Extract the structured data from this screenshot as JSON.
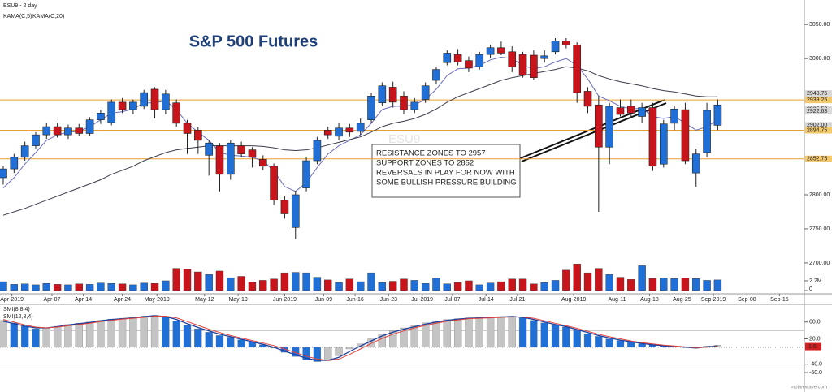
{
  "header": {
    "symbol": "ESU9 - 2 day",
    "watermark": "ESU9",
    "footer": "motivewave.com"
  },
  "chart_data": [
    {
      "type": "candlestick",
      "title": "S&P 500 Futures",
      "up_color": "#1f6fd6",
      "down_color": "#c8141a",
      "open": [
        2825,
        2838,
        2855,
        2872,
        2888,
        2900,
        2888,
        2898,
        2890,
        2910,
        2906,
        2936,
        2925,
        2930,
        2955,
        2925,
        2935,
        2905,
        2895,
        2858,
        2872,
        2830,
        2872,
        2866,
        2852,
        2842,
        2792,
        2752,
        2810,
        2850,
        2895,
        2886,
        2898,
        2893,
        2910,
        2935,
        2958,
        2945,
        2925,
        2940,
        2968,
        2994,
        3006,
        2997,
        2988,
        3006,
        3016,
        3010,
        3006,
        3005,
        3000,
        3010,
        3026,
        3020,
        2952,
        2932,
        2870,
        2928,
        2930,
        2915,
        2928,
        2845,
        2905,
        2925,
        2832,
        2862,
        2902
      ],
      "high": [
        2842,
        2860,
        2878,
        2892,
        2905,
        2906,
        2903,
        2904,
        2914,
        2925,
        2940,
        2942,
        2940,
        2954,
        2958,
        2954,
        2940,
        2910,
        2900,
        2880,
        2876,
        2880,
        2878,
        2870,
        2858,
        2846,
        2798,
        2806,
        2856,
        2885,
        2900,
        2905,
        2904,
        2912,
        2950,
        2965,
        2966,
        2952,
        2942,
        2965,
        2988,
        3012,
        3014,
        3003,
        3010,
        3020,
        3025,
        3018,
        3010,
        3012,
        3012,
        3030,
        3030,
        3024,
        2958,
        2945,
        2935,
        2940,
        2940,
        2935,
        2935,
        2910,
        2930,
        2935,
        2868,
        2935,
        2940
      ],
      "low": [
        2815,
        2832,
        2850,
        2868,
        2882,
        2884,
        2882,
        2886,
        2887,
        2904,
        2902,
        2920,
        2918,
        2926,
        2912,
        2918,
        2900,
        2860,
        2860,
        2828,
        2805,
        2822,
        2855,
        2840,
        2836,
        2785,
        2765,
        2735,
        2805,
        2845,
        2882,
        2880,
        2885,
        2888,
        2905,
        2930,
        2928,
        2918,
        2920,
        2935,
        2962,
        2990,
        2990,
        2980,
        2984,
        3000,
        3005,
        2980,
        2972,
        2968,
        2994,
        3006,
        3015,
        2935,
        2920,
        2775,
        2845,
        2915,
        2912,
        2905,
        2835,
        2840,
        2895,
        2845,
        2812,
        2855,
        2895
      ],
      "close": [
        2838,
        2855,
        2872,
        2888,
        2900,
        2888,
        2898,
        2890,
        2910,
        2920,
        2936,
        2925,
        2936,
        2950,
        2925,
        2948,
        2905,
        2890,
        2880,
        2876,
        2830,
        2876,
        2860,
        2855,
        2842,
        2792,
        2772,
        2800,
        2850,
        2880,
        2888,
        2898,
        2892,
        2905,
        2945,
        2960,
        2936,
        2925,
        2936,
        2960,
        2984,
        3008,
        2995,
        2986,
        3006,
        3016,
        3008,
        2988,
        2976,
        2972,
        3004,
        3026,
        3020,
        2950,
        2930,
        2870,
        2930,
        2918,
        2920,
        2928,
        2842,
        2904,
        2926,
        2850,
        2860,
        2924,
        2932
      ],
      "series": [
        {
          "name": "KAMA(C,5)",
          "color": "#6a6db8",
          "values": [
            2810,
            2825,
            2845,
            2862,
            2880,
            2888,
            2892,
            2893,
            2900,
            2910,
            2920,
            2922,
            2926,
            2935,
            2935,
            2938,
            2925,
            2905,
            2892,
            2880,
            2862,
            2858,
            2857,
            2855,
            2850,
            2835,
            2812,
            2805,
            2818,
            2840,
            2860,
            2872,
            2880,
            2888,
            2905,
            2925,
            2930,
            2930,
            2932,
            2940,
            2955,
            2975,
            2985,
            2986,
            2990,
            2998,
            3002,
            3000,
            2990,
            2985,
            2988,
            2995,
            3000,
            2990,
            2970,
            2945,
            2938,
            2930,
            2926,
            2927,
            2915,
            2912,
            2915,
            2905,
            2895,
            2900,
            2910
          ]
        },
        {
          "name": "KAMA(C,20)",
          "color": "#3c3c4c",
          "values": [
            2770,
            2775,
            2780,
            2786,
            2792,
            2798,
            2804,
            2810,
            2816,
            2822,
            2830,
            2836,
            2842,
            2850,
            2856,
            2862,
            2866,
            2868,
            2870,
            2872,
            2872,
            2872,
            2872,
            2872,
            2871,
            2869,
            2866,
            2865,
            2866,
            2869,
            2873,
            2877,
            2881,
            2885,
            2892,
            2900,
            2905,
            2908,
            2912,
            2918,
            2926,
            2936,
            2944,
            2950,
            2956,
            2962,
            2968,
            2972,
            2975,
            2978,
            2981,
            2984,
            2988,
            2986,
            2982,
            2975,
            2970,
            2966,
            2963,
            2960,
            2956,
            2953,
            2951,
            2948,
            2945,
            2944,
            2944
          ]
        }
      ],
      "ylim": [
        2657,
        3086
      ],
      "yticks": [
        {
          "value": 3050,
          "label": "3050.00"
        },
        {
          "value": 3000,
          "label": "3000.00"
        },
        {
          "value": 2800,
          "label": "2800.00"
        },
        {
          "value": 2750,
          "label": "2750.00"
        },
        {
          "value": 2700,
          "label": "2700.00"
        }
      ],
      "levels": [
        {
          "value": 2948.75,
          "color": "#d8d8d8",
          "line": false
        },
        {
          "value": 2939.25,
          "color": "#f3c96b",
          "line": true
        },
        {
          "value": 2925.5,
          "label": "2925.50",
          "color": "#d8d8d8",
          "line": false
        },
        {
          "value": 2922.63,
          "color": "#d8d8d8",
          "line": false
        },
        {
          "value": 2902,
          "label": "2902.00",
          "color": "#d8d8d8",
          "line": false
        },
        {
          "value": 2894.75,
          "color": "#f3c96b",
          "line": true
        },
        {
          "value": 2852.75,
          "color": "#f3c96b",
          "line": true
        }
      ],
      "xlim": [
        -0.3,
        74
      ],
      "xticks": [
        {
          "value": 0.8,
          "label": "Apr-2019"
        },
        {
          "value": 4.5,
          "label": "Apr-07"
        },
        {
          "value": 7.4,
          "label": "Apr-14"
        },
        {
          "value": 11,
          "label": "Apr-24"
        },
        {
          "value": 14.2,
          "label": "May-2019"
        },
        {
          "value": 18.6,
          "label": "May-12"
        },
        {
          "value": 21.7,
          "label": "May-19"
        },
        {
          "value": 26,
          "label": "Jun-2019"
        },
        {
          "value": 29.6,
          "label": "Jun-09"
        },
        {
          "value": 32.5,
          "label": "Jun-16"
        },
        {
          "value": 35.6,
          "label": "Jun-23"
        },
        {
          "value": 38.7,
          "label": "Jul-2019"
        },
        {
          "value": 41.5,
          "label": "Jul-07"
        },
        {
          "value": 44.6,
          "label": "Jul-14"
        },
        {
          "value": 47.5,
          "label": "Jul-21"
        },
        {
          "value": 52.7,
          "label": "Aug-2019"
        },
        {
          "value": 56.7,
          "label": "Aug-11"
        },
        {
          "value": 59.7,
          "label": "Aug-18"
        },
        {
          "value": 62.7,
          "label": "Aug-25"
        },
        {
          "value": 65.6,
          "label": "Sep-2019"
        },
        {
          "value": 68.7,
          "label": "Sep-08"
        },
        {
          "value": 71.7,
          "label": "Sep-15"
        }
      ],
      "grid": false,
      "annotation": [
        "RESISTANCE ZONES TO 2957",
        "SUPPORT ZONES TO 2852",
        "REVERSALS IN PLAY FOR NOW WITH",
        "SOME BULLISH PRESSURE BUILDING"
      ]
    },
    {
      "type": "volume",
      "values": [
        2.0,
        1.4,
        1.5,
        1.3,
        1.6,
        1.4,
        1.3,
        1.5,
        1.4,
        1.7,
        1.6,
        1.5,
        1.3,
        1.7,
        1.6,
        2.2,
        5.0,
        4.8,
        4.2,
        3.6,
        4.4,
        2.9,
        3.2,
        1.9,
        2.3,
        2.6,
        4.0,
        4.1,
        4.0,
        3.0,
        2.4,
        1.8,
        2.6,
        2.0,
        4.0,
        1.8,
        2.1,
        2.6,
        2.3,
        1.6,
        2.8,
        1.5,
        1.8,
        2.2,
        1.3,
        1.7,
        2.0,
        2.6,
        2.6,
        1.5,
        1.8,
        2.3,
        4.6,
        6.0,
        4.0,
        5.0,
        3.6,
        3.0,
        2.5,
        5.6,
        2.7,
        2.8,
        2.7,
        2.8,
        2.7,
        2.3,
        2.4
      ],
      "ylim": [
        0,
        6.4
      ],
      "yticks": [
        {
          "value": 2.2,
          "label": "2.2M"
        },
        0
      ]
    },
    {
      "type": "smi",
      "series": [
        {
          "name": "SMI(8,8,4)",
          "kind": "histogram",
          "rise_color": "#c4c4c4",
          "fall_color": "#1f6fd6",
          "values": [
            64,
            58,
            50,
            44,
            46,
            50,
            54,
            57,
            60,
            64,
            67,
            69,
            71,
            74,
            76,
            72,
            62,
            52,
            44,
            36,
            28,
            24,
            18,
            12,
            6,
            -2,
            -12,
            -22,
            -30,
            -34,
            -32,
            -20,
            -4,
            8,
            20,
            32,
            40,
            46,
            52,
            58,
            62,
            66,
            68,
            70,
            71,
            72,
            73,
            74,
            70,
            64,
            58,
            52,
            48,
            40,
            32,
            26,
            20,
            16,
            12,
            8,
            6,
            4,
            2,
            0,
            -2,
            3,
            5
          ]
        },
        {
          "name": "SMI(12,8,4)",
          "kind": "line",
          "color": "#1b3f9a",
          "values": [
            62,
            56,
            50,
            46,
            46,
            49,
            53,
            56,
            59,
            63,
            66,
            68,
            70,
            73,
            75,
            73,
            66,
            56,
            47,
            39,
            31,
            25,
            19,
            13,
            7,
            0,
            -9,
            -18,
            -26,
            -31,
            -31,
            -24,
            -10,
            3,
            15,
            27,
            36,
            43,
            49,
            55,
            60,
            64,
            67,
            69,
            70,
            71,
            72,
            73,
            71,
            66,
            60,
            54,
            49,
            42,
            35,
            28,
            22,
            17,
            13,
            9,
            6,
            4,
            2,
            0,
            -2,
            1,
            3
          ]
        }
      ],
      "signal": {
        "color": "#e0403a",
        "values": [
          66,
          60,
          53,
          48,
          46,
          48,
          51,
          54,
          57,
          61,
          64,
          67,
          69,
          71,
          74,
          74,
          70,
          61,
          52,
          43,
          35,
          28,
          22,
          16,
          10,
          4,
          -4,
          -13,
          -21,
          -28,
          -31,
          -28,
          -17,
          -4,
          9,
          21,
          31,
          39,
          46,
          52,
          57,
          62,
          65,
          68,
          69,
          70,
          71,
          72,
          72,
          69,
          63,
          57,
          51,
          45,
          38,
          31,
          25,
          20,
          15,
          11,
          8,
          5,
          3,
          1,
          -1,
          0,
          2
        ]
      },
      "levels": [
        40,
        -40
      ],
      "last_value": 1.6,
      "ylim": [
        -85,
        100
      ],
      "yticks": [
        {
          "value": 60,
          "label": "60.0"
        },
        {
          "value": 20,
          "label": "20.0"
        },
        {
          "value": -40,
          "label": "-40.0"
        },
        {
          "value": -60,
          "label": "-60.0"
        }
      ]
    }
  ]
}
